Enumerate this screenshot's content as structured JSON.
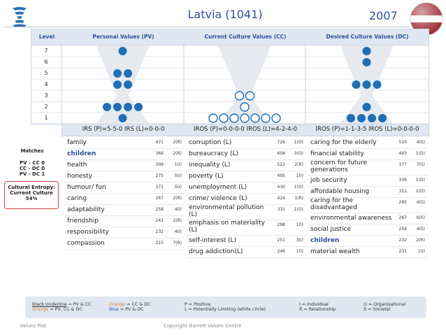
{
  "title": "Latvia (1041)",
  "year": "2007",
  "header": {
    "level": "Level",
    "pv": "Personal Values (PV)",
    "cc": "Current Culture Values (CC)",
    "dc": "Desired Culture Values (DC)"
  },
  "levels": [
    "7",
    "6",
    "5",
    "4",
    "3",
    "2",
    "1"
  ],
  "dots": {
    "pv": {
      "7": 1,
      "6": 0,
      "5": 2,
      "4": 2,
      "3": 0,
      "2": 4,
      "1": 1
    },
    "cc": {
      "7": 0,
      "6": 0,
      "5": 0,
      "4": 0,
      "3": 2,
      "2": 1,
      "1": 7
    },
    "dc": {
      "7": 1,
      "6": 1,
      "5": 0,
      "4": 3,
      "3": 0,
      "2": 1,
      "1": 4
    }
  },
  "irs": {
    "pv": "IRS (P)=5-5-0 IRS (L)=0-0-0",
    "cc": "IROS (P)=0-0-0-0 IROS (L)=4-2-4-0",
    "dc": "IROS (P)=1-1-3-5 IROS (L)=0-0-0-0"
  },
  "side": {
    "matches": "Matches",
    "pv_cc": "PV - CC 0",
    "cc_dc": "CC - DC 0",
    "pv_dc": "PV - DC 1",
    "entropy1": "Cultural Entropy:",
    "entropy2": "Current Culture",
    "entropy3": "54%"
  },
  "pv_values": [
    {
      "label": "family",
      "votes": "471",
      "code": "2(R)"
    },
    {
      "label": "children",
      "votes": "369",
      "code": "2(R)",
      "style": "blue"
    },
    {
      "label": "health",
      "votes": "309",
      "code": "1(I)"
    },
    {
      "label": "honesty",
      "votes": "275",
      "code": "5(I)"
    },
    {
      "label": "humour/ fun",
      "votes": "271",
      "code": "5(I)"
    },
    {
      "label": "caring",
      "votes": "267",
      "code": "2(R)"
    },
    {
      "label": "adaptability",
      "votes": "258",
      "code": "4(I)"
    },
    {
      "label": "friendship",
      "votes": "241",
      "code": "2(R)"
    },
    {
      "label": "responsibility",
      "votes": "232",
      "code": "4(I)"
    },
    {
      "label": "compassion",
      "votes": "215",
      "code": "7(R)"
    }
  ],
  "cc_values": [
    {
      "label": "corruption (L)",
      "votes": "726",
      "code": "1(O)"
    },
    {
      "label": "bureaucracy (L)",
      "votes": "604",
      "code": "3(O)"
    },
    {
      "label": "inequality (L)",
      "votes": "522",
      "code": "2(R)"
    },
    {
      "label": "poverty (L)",
      "votes": "495",
      "code": "1(I)"
    },
    {
      "label": "unemployment (L)",
      "votes": "430",
      "code": "1(O)"
    },
    {
      "label": "crime/ violence (L)",
      "votes": "424",
      "code": "1(R)"
    },
    {
      "label": "environmental pollution (L)",
      "votes": "331",
      "code": "1(O)"
    },
    {
      "label": "emphasis on materiality (L)",
      "votes": "298",
      "code": "1(I)"
    },
    {
      "label": "self-interest (L)",
      "votes": "251",
      "code": "3(I)"
    },
    {
      "label": "drug addiction(L)",
      "votes": "246",
      "code": "1(I)"
    }
  ],
  "dc_values": [
    {
      "label": "caring for the elderly",
      "votes": "510",
      "code": "4(S)"
    },
    {
      "label": "financial stability",
      "votes": "493",
      "code": "1(O)"
    },
    {
      "label": "concern for future generations",
      "votes": "377",
      "code": "7(S)"
    },
    {
      "label": "job security",
      "votes": "336",
      "code": "1(O)"
    },
    {
      "label": "affordable housing",
      "votes": "311",
      "code": "1(O)"
    },
    {
      "label": "caring for the disadvantaged",
      "votes": "295",
      "code": "4(S)"
    },
    {
      "label": "environmental awareness",
      "votes": "287",
      "code": "6(S)"
    },
    {
      "label": "social justice",
      "votes": "258",
      "code": "4(S)"
    },
    {
      "label": "children",
      "votes": "232",
      "code": "2(R)",
      "style": "blue"
    },
    {
      "label": "material wealth",
      "votes": "231",
      "code": "1(I)"
    }
  ],
  "legend": {
    "black_underline": "Black Underline",
    "black_underline_def": " = PV & CC",
    "orange": "Orange",
    "orange_def": " = PV, CC & DC",
    "orange2": "Orange",
    "orange2_def": " = CC & DC",
    "blue": "Blue",
    "blue_def": " = PV & DC",
    "p": "P = Positive",
    "l": "L = Potentially Limiting (white circle)",
    "i": "I = Individual",
    "r": "R = Relationship",
    "o": "O = Organisational",
    "s": "S = Societal"
  },
  "footer": {
    "left": "Values Plot",
    "center": "Copyright Barrett Values Centre"
  },
  "colors": {
    "accent": "#2e4f9e",
    "dot": "#1f6fb5",
    "panel": "#dfe7f2",
    "flag_red": "#9e3039"
  }
}
